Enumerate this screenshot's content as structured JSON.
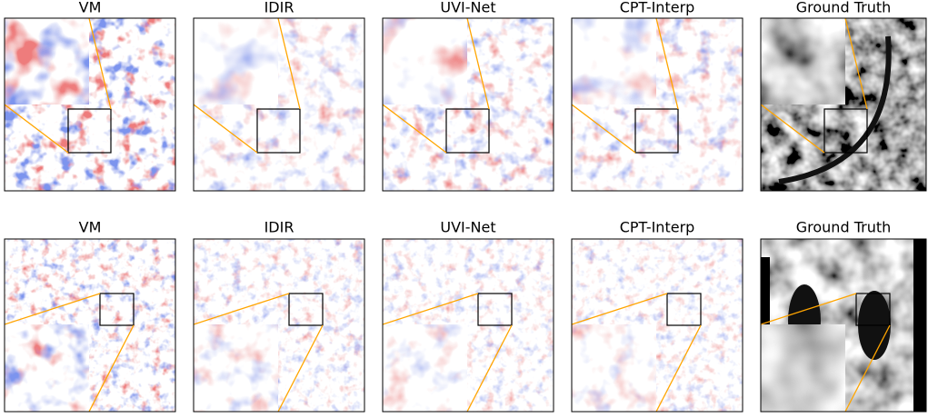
{
  "rows": [
    {
      "panels": [
        {
          "title": "VM"
        },
        {
          "title": "IDIR"
        },
        {
          "title": "UVI-Net"
        },
        {
          "title": "CPT-Interp"
        },
        {
          "title": "Ground Truth"
        }
      ]
    },
    {
      "panels": [
        {
          "title": "VM"
        },
        {
          "title": "IDIR"
        },
        {
          "title": "UVI-Net"
        },
        {
          "title": "CPT-Interp"
        },
        {
          "title": "Ground Truth"
        }
      ]
    }
  ]
}
